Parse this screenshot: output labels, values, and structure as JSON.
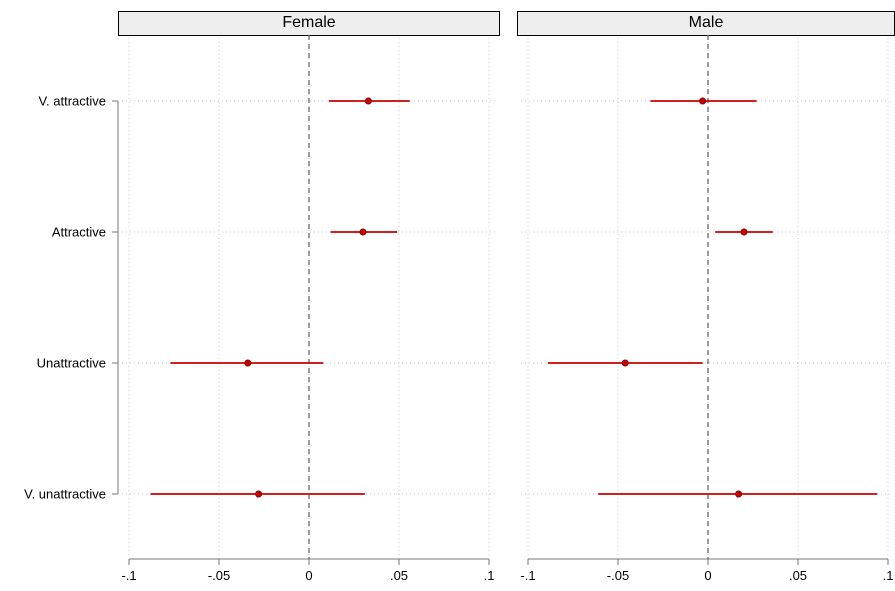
{
  "chart_data": {
    "type": "scatter",
    "subtype": "coefficient-plot",
    "facet_labels": [
      "Female",
      "Male"
    ],
    "categories": [
      "V. attractive",
      "Attractive",
      "Unattractive",
      "V. unattractive"
    ],
    "xlim": [
      -0.1,
      0.1
    ],
    "x_ticks": [
      -0.1,
      -0.05,
      0,
      0.05,
      0.1
    ],
    "x_tick_labels": [
      "-.1",
      "-.05",
      "0",
      ".05",
      ".1"
    ],
    "reference_line": 0,
    "grid": true,
    "marker_color": "#cc0000",
    "panels": [
      {
        "name": "Female",
        "points": [
          {
            "category": "V. attractive",
            "estimate": 0.033,
            "ci_low": 0.011,
            "ci_high": 0.056
          },
          {
            "category": "Attractive",
            "estimate": 0.03,
            "ci_low": 0.012,
            "ci_high": 0.049
          },
          {
            "category": "Unattractive",
            "estimate": -0.034,
            "ci_low": -0.077,
            "ci_high": 0.008
          },
          {
            "category": "V. unattractive",
            "estimate": -0.028,
            "ci_low": -0.088,
            "ci_high": 0.031
          }
        ]
      },
      {
        "name": "Male",
        "points": [
          {
            "category": "V. attractive",
            "estimate": -0.003,
            "ci_low": -0.032,
            "ci_high": 0.027
          },
          {
            "category": "Attractive",
            "estimate": 0.02,
            "ci_low": 0.004,
            "ci_high": 0.036
          },
          {
            "category": "Unattractive",
            "estimate": -0.046,
            "ci_low": -0.089,
            "ci_high": -0.003
          },
          {
            "category": "V. unattractive",
            "estimate": 0.017,
            "ci_low": -0.061,
            "ci_high": 0.094
          }
        ]
      }
    ]
  }
}
